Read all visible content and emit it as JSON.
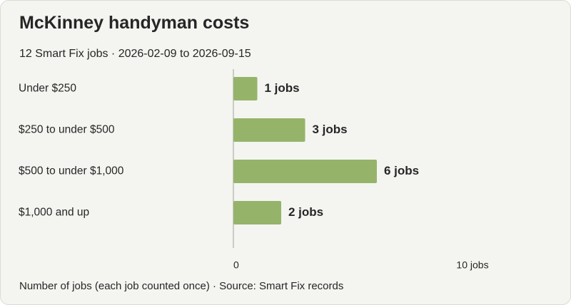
{
  "header": {
    "title": "McKinney handyman costs",
    "subtitle": "12 Smart Fix jobs · 2026-02-09 to 2026-09-15"
  },
  "footer": {
    "note": "Number of jobs (each job counted once) · Source: Smart Fix records"
  },
  "colors": {
    "bar": "#95b46a",
    "axis": "#bdbdb6",
    "background": "#f4f5f1",
    "text": "#262626"
  },
  "chart_data": {
    "type": "bar",
    "orientation": "horizontal",
    "categories": [
      "Under $250",
      "$250 to under $500",
      "$500 to under $1,000",
      "$1,000 and up"
    ],
    "values": [
      1,
      3,
      6,
      2
    ],
    "value_labels": [
      "1 jobs",
      "3 jobs",
      "6 jobs",
      "2 jobs"
    ],
    "xlim": [
      0,
      10
    ],
    "x_ticks": [
      {
        "value": 0,
        "label": "0"
      },
      {
        "value": 10,
        "label": "10 jobs"
      }
    ],
    "grid": false
  }
}
